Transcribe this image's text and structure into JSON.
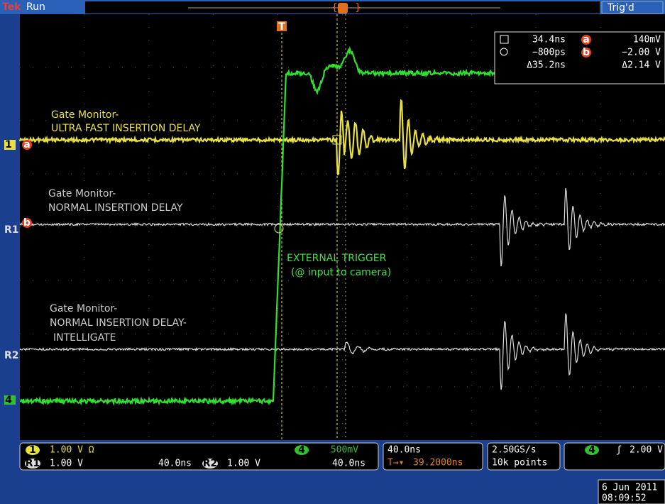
{
  "header": {
    "brand": "Tek",
    "status": "Run",
    "trigger_state": "Trig'd"
  },
  "trigger_marker": "T",
  "cursors": {
    "a_label": "a",
    "b_label": "b",
    "time1": "34.4ns",
    "time2": "−800ps",
    "dtime": "Δ35.2ns",
    "volt1": "140mV",
    "volt2": "−2.00 V",
    "dvolt": "Δ2.14 V"
  },
  "annotations": [
    {
      "line1": "Gate Monitor-",
      "line2": "ULTRA FAST INSERTION DELAY"
    },
    {
      "line1": "Gate Monitor-",
      "line2": "NORMAL INSERTION DELAY"
    },
    {
      "line1": "EXTERNAL TRIGGER",
      "line2": "(@ input to camera)"
    },
    {
      "line1": "Gate Monitor-",
      "line2": "NORMAL INSERTION DELAY-",
      "line3": "INTELLIGATE"
    }
  ],
  "channel_markers": {
    "ch1": "1",
    "a": "a",
    "b": "b",
    "r1": "R1",
    "r2": "R2",
    "ch4": "4"
  },
  "status_bar": {
    "ch1_label": "1",
    "ch1_scale": "1.00 V Ω",
    "ch4_label": "4",
    "ch4_scale": "500mV",
    "r1_label": "R1",
    "r1_scale": "1.00 V",
    "r1_time": "40.0ns",
    "r2_label": "R2",
    "r2_scale": "1.00 V",
    "r2_time": "40.0ns",
    "timebase": "40.0ns",
    "trigger_pos_icon": "T→▾",
    "trigger_pos": "39.2000ns",
    "sample_rate": "2.50GS/s",
    "record_length": "10k points",
    "trig_source": "4",
    "trig_slope": "ʃ",
    "trig_level": "2.00 V",
    "date": "6 Jun 2011",
    "time": "08:09:52"
  }
}
